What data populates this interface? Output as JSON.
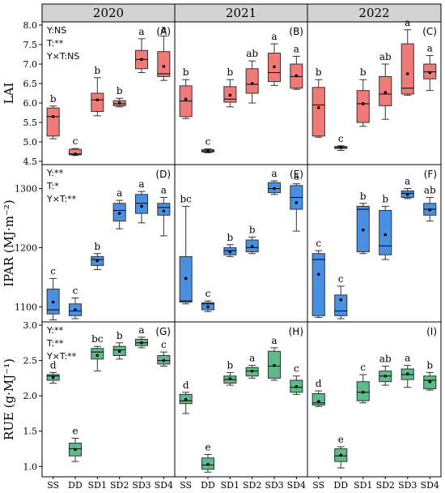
{
  "years": [
    "2020",
    "2021",
    "2022"
  ],
  "treatments": [
    "SS",
    "DD",
    "SD1",
    "SD2",
    "SD3",
    "SD4"
  ],
  "chart_data": [
    {
      "type": "box",
      "ylabel": "LAI",
      "ylim": [
        4.5,
        8.0
      ],
      "yticks": [
        "4.5",
        "5.0",
        "5.5",
        "6.0",
        "6.5",
        "7.0",
        "7.5",
        "8.0"
      ],
      "color": "#f07a78",
      "stats": [
        "Y:NS",
        "T:**",
        "Y×T:NS"
      ],
      "panels": [
        {
          "label": "(A)",
          "year": "2020",
          "boxes": [
            {
              "g": "SS",
              "min": 5.08,
              "q1": 5.15,
              "med": 5.65,
              "q3": 5.87,
              "max": 5.92,
              "mean": 5.65,
              "letter": "b"
            },
            {
              "g": "DD",
              "min": 4.65,
              "q1": 4.67,
              "med": 4.69,
              "q3": 4.81,
              "max": 4.83,
              "mean": 4.69,
              "letter": "c"
            },
            {
              "g": "SD1",
              "min": 5.67,
              "q1": 5.78,
              "med": 6.08,
              "q3": 6.25,
              "max": 6.65,
              "mean": 6.08,
              "letter": "b"
            },
            {
              "g": "SD2",
              "min": 5.9,
              "q1": 5.93,
              "med": 5.98,
              "q3": 6.06,
              "max": 6.12,
              "mean": 6.0,
              "letter": "b"
            },
            {
              "g": "SD3",
              "min": 6.78,
              "q1": 6.88,
              "med": 7.12,
              "q3": 7.35,
              "max": 7.65,
              "mean": 7.12,
              "letter": "a"
            },
            {
              "g": "SD4",
              "min": 6.58,
              "q1": 6.68,
              "med": 6.75,
              "q3": 7.32,
              "max": 7.72,
              "mean": 6.94,
              "letter": "a"
            }
          ]
        },
        {
          "label": "(B)",
          "year": "2021",
          "boxes": [
            {
              "g": "SS",
              "min": 5.6,
              "q1": 5.65,
              "med": 6.05,
              "q3": 6.44,
              "max": 6.6,
              "mean": 6.1,
              "letter": "b"
            },
            {
              "g": "DD",
              "min": 4.72,
              "q1": 4.74,
              "med": 4.77,
              "q3": 4.8,
              "max": 4.82,
              "mean": 4.77,
              "letter": "c"
            },
            {
              "g": "SD1",
              "min": 5.9,
              "q1": 6.02,
              "med": 6.1,
              "q3": 6.42,
              "max": 6.6,
              "mean": 6.2,
              "letter": "b"
            },
            {
              "g": "SD2",
              "min": 6.0,
              "q1": 6.25,
              "med": 6.48,
              "q3": 6.88,
              "max": 7.08,
              "mean": 6.5,
              "letter": "ab"
            },
            {
              "g": "SD3",
              "min": 6.45,
              "q1": 6.55,
              "med": 6.78,
              "q3": 7.28,
              "max": 7.52,
              "mean": 6.93,
              "letter": "a"
            },
            {
              "g": "SD4",
              "min": 6.35,
              "q1": 6.38,
              "med": 6.68,
              "q3": 7.0,
              "max": 7.2,
              "mean": 6.7,
              "letter": "a"
            }
          ]
        },
        {
          "label": "(C)",
          "year": "2022",
          "boxes": [
            {
              "g": "SS",
              "min": 5.12,
              "q1": 5.15,
              "med": 5.95,
              "q3": 6.4,
              "max": 6.6,
              "mean": 5.88,
              "letter": "b"
            },
            {
              "g": "DD",
              "min": 4.78,
              "q1": 4.83,
              "med": 4.86,
              "q3": 4.88,
              "max": 4.9,
              "mean": 4.86,
              "letter": "c"
            },
            {
              "g": "SD1",
              "min": 5.4,
              "q1": 5.5,
              "med": 5.98,
              "q3": 6.32,
              "max": 6.6,
              "mean": 5.98,
              "letter": "b"
            },
            {
              "g": "SD2",
              "min": 5.58,
              "q1": 5.93,
              "med": 6.23,
              "q3": 6.68,
              "max": 7.0,
              "mean": 6.27,
              "letter": "ab"
            },
            {
              "g": "SD3",
              "min": 6.2,
              "q1": 6.23,
              "med": 6.38,
              "q3": 7.52,
              "max": 7.88,
              "mean": 6.75,
              "letter": "a"
            },
            {
              "g": "SD4",
              "min": 6.32,
              "q1": 6.62,
              "med": 6.8,
              "q3": 7.0,
              "max": 7.22,
              "mean": 6.78,
              "letter": "a"
            }
          ]
        }
      ]
    },
    {
      "type": "box",
      "ylabel": "IPAR (MJ·m⁻²)",
      "ylim": [
        1080,
        1335
      ],
      "yticks": [
        "1100",
        "1200",
        "1300"
      ],
      "color": "#4a90e2",
      "stats": [
        "Y:**",
        "T:*",
        "Y×T:**"
      ],
      "panels": [
        {
          "label": "(D)",
          "year": "2020",
          "boxes": [
            {
              "g": "SS",
              "min": 1078,
              "q1": 1088,
              "med": 1095,
              "q3": 1130,
              "max": 1148,
              "mean": 1108,
              "letter": "c"
            },
            {
              "g": "DD",
              "min": 1080,
              "q1": 1085,
              "med": 1093,
              "q3": 1105,
              "max": 1115,
              "mean": 1095,
              "letter": "c"
            },
            {
              "g": "SD1",
              "min": 1163,
              "q1": 1170,
              "med": 1180,
              "q3": 1185,
              "max": 1190,
              "mean": 1178,
              "letter": "b"
            },
            {
              "g": "SD2",
              "min": 1232,
              "q1": 1245,
              "med": 1263,
              "q3": 1275,
              "max": 1280,
              "mean": 1258,
              "letter": "a"
            },
            {
              "g": "SD3",
              "min": 1242,
              "q1": 1258,
              "med": 1275,
              "q3": 1290,
              "max": 1295,
              "mean": 1270,
              "letter": "a"
            },
            {
              "g": "SD4",
              "min": 1220,
              "q1": 1255,
              "med": 1268,
              "q3": 1275,
              "max": 1285,
              "mean": 1262,
              "letter": "a"
            }
          ]
        },
        {
          "label": "(E)",
          "year": "2021",
          "boxes": [
            {
              "g": "SS",
              "min": 1105,
              "q1": 1108,
              "med": 1110,
              "q3": 1185,
              "max": 1270,
              "mean": 1148,
              "letter": "bc"
            },
            {
              "g": "DD",
              "min": 1092,
              "q1": 1095,
              "med": 1105,
              "q3": 1107,
              "max": 1110,
              "mean": 1100,
              "letter": "c"
            },
            {
              "g": "SD1",
              "min": 1185,
              "q1": 1188,
              "med": 1195,
              "q3": 1200,
              "max": 1205,
              "mean": 1193,
              "letter": "b"
            },
            {
              "g": "SD2",
              "min": 1190,
              "q1": 1193,
              "med": 1200,
              "q3": 1213,
              "max": 1218,
              "mean": 1202,
              "letter": "b"
            },
            {
              "g": "SD3",
              "min": 1290,
              "q1": 1293,
              "med": 1300,
              "q3": 1310,
              "max": 1313,
              "mean": 1300,
              "letter": "a"
            },
            {
              "g": "SD4",
              "min": 1228,
              "q1": 1265,
              "med": 1285,
              "q3": 1305,
              "max": 1308,
              "mean": 1276,
              "letter": "a"
            }
          ]
        },
        {
          "label": "(F)",
          "year": "2022",
          "boxes": [
            {
              "g": "SS",
              "min": 1082,
              "q1": 1085,
              "med": 1180,
              "q3": 1190,
              "max": 1195,
              "mean": 1155,
              "letter": "c"
            },
            {
              "g": "DD",
              "min": 1080,
              "q1": 1085,
              "med": 1093,
              "q3": 1120,
              "max": 1135,
              "mean": 1112,
              "letter": "c"
            },
            {
              "g": "SD1",
              "min": 1190,
              "q1": 1193,
              "med": 1265,
              "q3": 1270,
              "max": 1275,
              "mean": 1230,
              "letter": "b"
            },
            {
              "g": "SD2",
              "min": 1180,
              "q1": 1188,
              "med": 1203,
              "q3": 1263,
              "max": 1270,
              "mean": 1222,
              "letter": "b"
            },
            {
              "g": "SD3",
              "min": 1283,
              "q1": 1285,
              "med": 1292,
              "q3": 1296,
              "max": 1300,
              "mean": 1290,
              "letter": "a"
            },
            {
              "g": "SD4",
              "min": 1245,
              "q1": 1255,
              "med": 1265,
              "q3": 1275,
              "max": 1285,
              "mean": 1264,
              "letter": "ab"
            }
          ]
        }
      ]
    },
    {
      "type": "box",
      "ylabel": "RUE (g·MJ⁻¹)",
      "ylim": [
        0.9,
        3.0
      ],
      "yticks": [
        "1.0",
        "1.5",
        "2.0",
        "2.5",
        "3.0"
      ],
      "color": "#5dbb8a",
      "stats": [
        "Y:**",
        "T:**",
        "Y×T:**"
      ],
      "panels": [
        {
          "label": "(G)",
          "year": "2020",
          "boxes": [
            {
              "g": "SS",
              "min": 2.18,
              "q1": 2.22,
              "med": 2.28,
              "q3": 2.3,
              "max": 2.33,
              "mean": 2.26,
              "letter": "d"
            },
            {
              "g": "DD",
              "min": 1.07,
              "q1": 1.15,
              "med": 1.25,
              "q3": 1.33,
              "max": 1.4,
              "mean": 1.24,
              "letter": "e"
            },
            {
              "g": "SD1",
              "min": 2.35,
              "q1": 2.52,
              "med": 2.62,
              "q3": 2.67,
              "max": 2.7,
              "mean": 2.57,
              "letter": "bc"
            },
            {
              "g": "SD2",
              "min": 2.52,
              "q1": 2.57,
              "med": 2.65,
              "q3": 2.7,
              "max": 2.75,
              "mean": 2.63,
              "letter": "b"
            },
            {
              "g": "SD3",
              "min": 2.68,
              "q1": 2.71,
              "med": 2.75,
              "q3": 2.8,
              "max": 2.83,
              "mean": 2.75,
              "letter": "a"
            },
            {
              "g": "SD4",
              "min": 2.42,
              "q1": 2.45,
              "med": 2.5,
              "q3": 2.57,
              "max": 2.62,
              "mean": 2.5,
              "letter": "c"
            }
          ]
        },
        {
          "label": "(H)",
          "year": "2021",
          "boxes": [
            {
              "g": "SS",
              "min": 1.75,
              "q1": 1.89,
              "med": 1.93,
              "q3": 2.02,
              "max": 2.05,
              "mean": 1.95,
              "letter": "d"
            },
            {
              "g": "DD",
              "min": 0.92,
              "q1": 0.96,
              "med": 1.02,
              "q3": 1.12,
              "max": 1.17,
              "mean": 1.03,
              "letter": "e"
            },
            {
              "g": "SD1",
              "min": 2.15,
              "q1": 2.18,
              "med": 2.23,
              "q3": 2.28,
              "max": 2.33,
              "mean": 2.24,
              "letter": "b"
            },
            {
              "g": "SD2",
              "min": 2.25,
              "q1": 2.28,
              "med": 2.35,
              "q3": 2.4,
              "max": 2.43,
              "mean": 2.35,
              "letter": "a"
            },
            {
              "g": "SD3",
              "min": 2.22,
              "q1": 2.25,
              "med": 2.42,
              "q3": 2.63,
              "max": 2.68,
              "mean": 2.43,
              "letter": "a"
            },
            {
              "g": "SD4",
              "min": 2.02,
              "q1": 2.05,
              "med": 2.12,
              "q3": 2.22,
              "max": 2.28,
              "mean": 2.13,
              "letter": "c"
            }
          ]
        },
        {
          "label": "(I)",
          "year": "2022",
          "boxes": [
            {
              "g": "SS",
              "min": 1.85,
              "q1": 1.87,
              "med": 1.9,
              "q3": 2.03,
              "max": 2.07,
              "mean": 1.92,
              "letter": "d"
            },
            {
              "g": "DD",
              "min": 0.98,
              "q1": 1.07,
              "med": 1.15,
              "q3": 1.25,
              "max": 1.28,
              "mean": 1.16,
              "letter": "e"
            },
            {
              "g": "SD1",
              "min": 1.9,
              "q1": 1.93,
              "med": 2.05,
              "q3": 2.2,
              "max": 2.3,
              "mean": 2.05,
              "letter": "c"
            },
            {
              "g": "SD2",
              "min": 2.15,
              "q1": 2.2,
              "med": 2.28,
              "q3": 2.35,
              "max": 2.42,
              "mean": 2.28,
              "letter": "ab"
            },
            {
              "g": "SD3",
              "min": 2.12,
              "q1": 2.23,
              "med": 2.3,
              "q3": 2.38,
              "max": 2.43,
              "mean": 2.31,
              "letter": "a"
            },
            {
              "g": "SD4",
              "min": 2.08,
              "q1": 2.1,
              "med": 2.22,
              "q3": 2.28,
              "max": 2.33,
              "mean": 2.2,
              "letter": "b"
            }
          ]
        }
      ]
    }
  ]
}
